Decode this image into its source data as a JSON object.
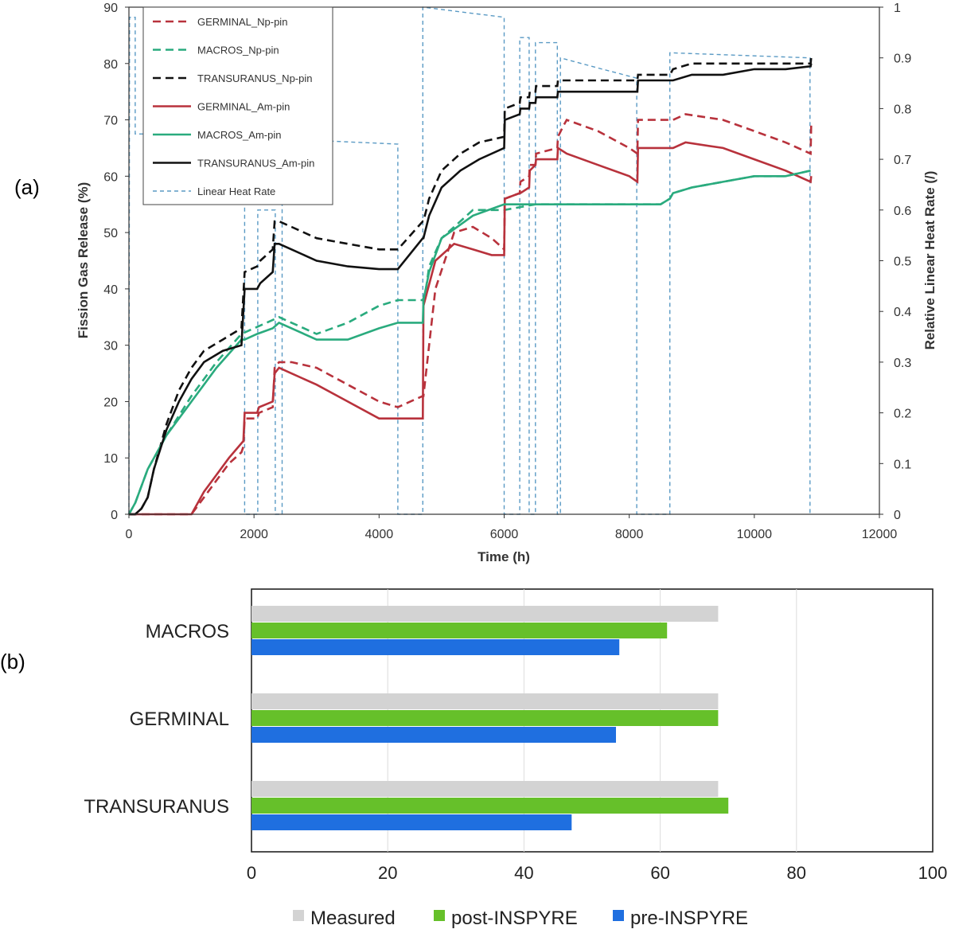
{
  "panel_labels": {
    "a": "(a)",
    "b": "(b)"
  },
  "colors": {
    "germinal": "#b8323c",
    "macros": "#2aab7e",
    "transuranus": "#111111",
    "lhr": "#5a9ac4",
    "measured": "#d3d3d3",
    "post": "#66c02a",
    "pre": "#1f6fe0"
  },
  "chart_data": [
    {
      "type": "line",
      "title": "",
      "xlabel": "Time (h)",
      "ylabel": "Fission Gas Release (%)",
      "y2label": "Relative Linear Heat Rate (/)",
      "xlim": [
        0,
        12000
      ],
      "ylim": [
        0,
        90
      ],
      "y2lim": [
        0,
        1
      ],
      "xticks": [
        "0",
        "2000",
        "4000",
        "6000",
        "8000",
        "10000",
        "12000"
      ],
      "yticks": [
        "0",
        "10",
        "20",
        "30",
        "40",
        "50",
        "60",
        "70",
        "80",
        "90"
      ],
      "y2ticks": [
        "0",
        "0.1",
        "0.2",
        "0.3",
        "0.4",
        "0.5",
        "0.6",
        "0.7",
        "0.8",
        "0.9",
        "1"
      ],
      "legend_position": "top-left",
      "series": [
        {
          "name": "GERMINAL_Np-pin",
          "style": "dashed",
          "color_key": "germinal",
          "x": [
            0,
            1000,
            1200,
            1400,
            1600,
            1800,
            1830,
            1850,
            2050,
            2080,
            2300,
            2330,
            2400,
            2600,
            3000,
            3500,
            4000,
            4300,
            4700,
            4710,
            4900,
            5200,
            5500,
            5800,
            6000,
            6010,
            6250,
            6260,
            6400,
            6410,
            6500,
            6510,
            6850,
            6860,
            6950,
            7000,
            7500,
            8000,
            8130,
            8140,
            8500,
            8650,
            8700,
            8900,
            9500,
            10000,
            10500,
            10900,
            10910
          ],
          "y": [
            0,
            0,
            3,
            6,
            9,
            11,
            12,
            17,
            17,
            18,
            19,
            26,
            27,
            27,
            26,
            23,
            20,
            19,
            21,
            21,
            40,
            50,
            51,
            49,
            47,
            56,
            57,
            59,
            60,
            62,
            62,
            64,
            65,
            67,
            69,
            70,
            68,
            65,
            64,
            70,
            70,
            70,
            70,
            71,
            70,
            68,
            66,
            64,
            69
          ]
        },
        {
          "name": "MACROS_Np-pin",
          "style": "dashed",
          "color_key": "macros",
          "x": [
            0,
            100,
            300,
            600,
            1000,
            1400,
            1800,
            2000,
            2200,
            2400,
            2600,
            3000,
            3500,
            4000,
            4300,
            4700,
            4750,
            4800,
            5000,
            5500,
            6000,
            6500,
            7000,
            7500,
            8000,
            8500,
            8650,
            8700,
            9000,
            9500,
            10000,
            10500,
            10900
          ],
          "y": [
            0,
            2,
            8,
            14,
            21,
            27,
            32,
            33,
            34,
            35,
            34,
            32,
            34,
            37,
            38,
            38,
            40,
            44,
            49,
            54,
            54,
            55,
            55,
            55,
            55,
            55,
            56,
            57,
            58,
            59,
            60,
            60,
            61
          ]
        },
        {
          "name": "TRANSURANUS_Np-pin",
          "style": "dashed",
          "color_key": "transuranus",
          "x": [
            0,
            100,
            200,
            300,
            400,
            600,
            800,
            1000,
            1200,
            1500,
            1800,
            1850,
            2050,
            2100,
            2300,
            2330,
            2400,
            2600,
            3000,
            3500,
            4000,
            4300,
            4700,
            4710,
            4800,
            5000,
            5300,
            5600,
            6000,
            6010,
            6250,
            6260,
            6400,
            6410,
            6500,
            6510,
            6850,
            6860,
            6900,
            7500,
            8000,
            8130,
            8140,
            8650,
            8700,
            9000,
            9500,
            10000,
            10500,
            10900,
            10910
          ],
          "y": [
            0,
            0,
            1,
            3,
            8,
            16,
            22,
            26,
            29,
            31,
            33,
            43,
            44,
            45,
            47,
            52,
            52,
            51,
            49,
            48,
            47,
            47,
            52,
            52,
            56,
            61,
            64,
            66,
            67,
            72,
            73,
            74,
            74,
            75,
            75,
            76,
            76,
            77,
            77,
            77,
            77,
            77,
            78,
            78,
            79,
            80,
            80,
            80,
            80,
            80,
            81
          ]
        },
        {
          "name": "GERMINAL_Am-pin",
          "style": "solid",
          "color_key": "germinal",
          "x": [
            0,
            1000,
            1200,
            1400,
            1600,
            1830,
            1850,
            2050,
            2080,
            2300,
            2330,
            2400,
            2600,
            3000,
            3500,
            4000,
            4300,
            4700,
            4710,
            4900,
            5200,
            5500,
            5800,
            6000,
            6010,
            6250,
            6260,
            6400,
            6410,
            6500,
            6510,
            6850,
            6860,
            7000,
            7500,
            8000,
            8130,
            8140,
            8650,
            8700,
            8900,
            9500,
            10000,
            10500,
            10900,
            10910
          ],
          "y": [
            0,
            0,
            4,
            7,
            10,
            13,
            18,
            18,
            19,
            20,
            25,
            26,
            25,
            23,
            20,
            17,
            17,
            17,
            37,
            45,
            48,
            47,
            46,
            46,
            56,
            57,
            57,
            58,
            61,
            62,
            63,
            63,
            65,
            64,
            62,
            60,
            59,
            65,
            65,
            65,
            66,
            65,
            63,
            61,
            59,
            60
          ]
        },
        {
          "name": "MACROS_Am-pin",
          "style": "solid",
          "color_key": "macros",
          "x": [
            0,
            100,
            300,
            600,
            1000,
            1400,
            1800,
            1850,
            2050,
            2300,
            2400,
            2600,
            3000,
            3500,
            4000,
            4300,
            4700,
            4710,
            4800,
            5000,
            5500,
            6000,
            6500,
            7000,
            7500,
            8000,
            8500,
            8650,
            8700,
            9000,
            9500,
            10000,
            10500,
            10900
          ],
          "y": [
            0,
            2,
            8,
            14,
            20,
            26,
            31,
            31,
            32,
            33,
            34,
            33,
            31,
            31,
            33,
            34,
            34,
            38,
            43,
            49,
            53,
            55,
            55,
            55,
            55,
            55,
            55,
            56,
            57,
            58,
            59,
            60,
            60,
            61
          ]
        },
        {
          "name": "TRANSURANUS_Am-pin",
          "style": "solid",
          "color_key": "transuranus",
          "x": [
            0,
            100,
            200,
            300,
            400,
            600,
            800,
            1000,
            1200,
            1500,
            1800,
            1850,
            2050,
            2100,
            2300,
            2330,
            2400,
            2600,
            3000,
            3500,
            4000,
            4300,
            4700,
            4710,
            4800,
            5000,
            5300,
            5600,
            6000,
            6010,
            6250,
            6260,
            6400,
            6410,
            6500,
            6510,
            6850,
            6860,
            6900,
            7500,
            8000,
            8130,
            8140,
            8650,
            8700,
            9000,
            9500,
            10000,
            10500,
            10900,
            10910
          ],
          "y": [
            0,
            0,
            1,
            3,
            8,
            15,
            20,
            24,
            27,
            29,
            30,
            40,
            40,
            41,
            43,
            48,
            48,
            47,
            45,
            44,
            43.5,
            43.5,
            49,
            49,
            53,
            58,
            61,
            63,
            65,
            70,
            71,
            72,
            72,
            73,
            73,
            74,
            74,
            75,
            75,
            75,
            75,
            75,
            77,
            77,
            77,
            78,
            78,
            79,
            79,
            79.5,
            80
          ]
        },
        {
          "name": "Linear Heat Rate",
          "style": "dotted",
          "color_key": "lhr",
          "axis": "y2",
          "x": [
            0,
            10,
            100,
            100,
            1850,
            1850,
            2060,
            2060,
            2340,
            2340,
            2450,
            2450,
            4300,
            4300,
            4700,
            4700,
            6000,
            6000,
            6250,
            6250,
            6400,
            6400,
            6500,
            6500,
            6850,
            6850,
            6900,
            6900,
            7500,
            8120,
            8120,
            8650,
            8650,
            10890,
            10890
          ],
          "y": [
            0,
            0.98,
            0.98,
            0.75,
            0.75,
            0,
            0,
            0.6,
            0.6,
            0,
            0,
            0.74,
            0.73,
            0,
            0,
            1.0,
            0.98,
            0,
            0,
            0.94,
            0.94,
            0,
            0,
            0.93,
            0.93,
            0,
            0,
            0.9,
            0.88,
            0.86,
            0,
            0,
            0.91,
            0.9,
            0
          ]
        }
      ]
    },
    {
      "type": "bar",
      "orientation": "horizontal",
      "title": "",
      "xlabel": "",
      "ylabel": "",
      "xlim": [
        0,
        100
      ],
      "xticks": [
        "0",
        "20",
        "40",
        "60",
        "80",
        "100"
      ],
      "categories": [
        "MACROS",
        "GERMINAL",
        "TRANSURANUS"
      ],
      "legend_position": "bottom",
      "series": [
        {
          "name": "Measured",
          "color_key": "measured",
          "values": [
            68.5,
            68.5,
            68.5
          ]
        },
        {
          "name": "post-INSPYRE",
          "color_key": "post",
          "values": [
            61,
            68.5,
            70
          ]
        },
        {
          "name": "pre-INSPYRE",
          "color_key": "pre",
          "values": [
            54,
            53.5,
            47
          ]
        }
      ]
    }
  ]
}
